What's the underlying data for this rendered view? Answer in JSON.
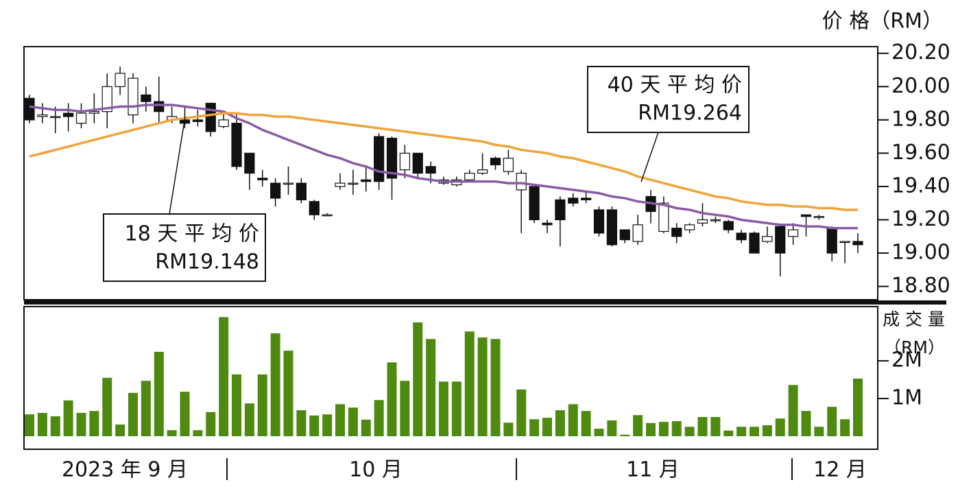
{
  "chart_data": [
    {
      "type": "candlestick",
      "y_title": "价 格（RM）",
      "open": [
        19.93,
        19.82,
        19.82,
        19.84,
        19.78,
        19.84,
        19.85,
        20.0,
        19.83,
        19.95,
        19.91,
        19.8,
        19.8,
        19.8,
        19.9,
        19.76,
        19.78,
        19.6,
        19.45,
        19.42,
        19.42,
        19.42,
        19.31,
        19.23,
        19.4,
        19.42,
        19.44,
        19.7,
        19.69,
        19.5,
        19.6,
        19.52,
        19.42,
        19.41,
        19.44,
        19.48,
        19.57,
        19.49,
        19.38,
        19.4,
        19.18,
        19.32,
        19.33,
        19.33,
        19.26,
        19.26,
        19.14,
        19.07,
        19.34,
        19.13,
        19.15,
        19.14,
        19.18,
        19.2,
        19.19,
        19.12,
        19.12,
        19.07,
        19.16,
        19.1,
        19.23,
        19.22,
        19.15,
        19.07,
        19.07
      ],
      "high": [
        19.95,
        19.9,
        19.88,
        19.9,
        19.9,
        19.96,
        20.08,
        20.12,
        20.08,
        20.0,
        20.06,
        19.88,
        19.88,
        19.86,
        19.9,
        19.85,
        19.84,
        19.6,
        19.5,
        19.45,
        19.52,
        19.45,
        19.32,
        19.24,
        19.48,
        19.5,
        19.52,
        19.72,
        19.7,
        19.65,
        19.6,
        19.55,
        19.46,
        19.46,
        19.5,
        19.6,
        19.58,
        19.62,
        19.5,
        19.4,
        19.2,
        19.34,
        19.36,
        19.37,
        19.28,
        19.28,
        19.14,
        19.23,
        19.38,
        19.34,
        19.18,
        19.18,
        19.3,
        19.22,
        19.2,
        19.14,
        19.13,
        19.16,
        19.17,
        19.18,
        19.23,
        19.23,
        19.16,
        19.07,
        19.12
      ],
      "low": [
        19.78,
        19.78,
        19.72,
        19.73,
        19.75,
        19.78,
        19.75,
        19.95,
        19.78,
        19.85,
        19.78,
        19.78,
        19.75,
        19.76,
        19.7,
        19.75,
        19.5,
        19.38,
        19.4,
        19.28,
        19.35,
        19.3,
        19.2,
        19.23,
        19.38,
        19.35,
        19.37,
        19.38,
        19.32,
        19.45,
        19.45,
        19.42,
        19.41,
        19.4,
        19.43,
        19.47,
        19.5,
        19.47,
        19.12,
        19.18,
        19.12,
        19.04,
        19.28,
        19.3,
        19.1,
        19.04,
        19.06,
        19.05,
        19.18,
        19.12,
        19.06,
        19.12,
        19.16,
        19.18,
        19.12,
        19.06,
        19.0,
        19.06,
        18.86,
        19.05,
        19.1,
        19.2,
        18.95,
        18.94,
        19.0
      ],
      "close": [
        19.8,
        19.83,
        19.82,
        19.82,
        19.84,
        19.85,
        20.0,
        20.08,
        20.05,
        19.91,
        19.85,
        19.82,
        19.78,
        19.79,
        19.73,
        19.8,
        19.52,
        19.48,
        19.44,
        19.33,
        19.42,
        19.32,
        19.23,
        19.23,
        19.42,
        19.42,
        19.43,
        19.43,
        19.45,
        19.6,
        19.48,
        19.48,
        19.44,
        19.44,
        19.48,
        19.5,
        19.53,
        19.57,
        19.48,
        19.2,
        19.17,
        19.2,
        19.3,
        19.32,
        19.12,
        19.05,
        19.08,
        19.17,
        19.25,
        19.3,
        19.1,
        19.17,
        19.2,
        19.2,
        19.14,
        19.08,
        19.0,
        19.1,
        19.0,
        19.14,
        19.22,
        19.22,
        19.0,
        19.07,
        19.05
      ],
      "series": [
        {
          "name": "18 天 平 均 价",
          "annotation": "RM19.148",
          "color": "#8b5aa6",
          "values": [
            19.88,
            19.87,
            19.86,
            19.86,
            19.85,
            19.86,
            19.87,
            19.88,
            19.88,
            19.89,
            19.89,
            19.89,
            19.88,
            19.87,
            19.86,
            19.85,
            19.81,
            19.78,
            19.74,
            19.71,
            19.68,
            19.65,
            19.62,
            19.59,
            19.57,
            19.54,
            19.52,
            19.49,
            19.48,
            19.47,
            19.45,
            19.44,
            19.43,
            19.43,
            19.43,
            19.43,
            19.43,
            19.42,
            19.42,
            19.41,
            19.4,
            19.39,
            19.38,
            19.37,
            19.36,
            19.34,
            19.33,
            19.31,
            19.3,
            19.29,
            19.27,
            19.26,
            19.24,
            19.23,
            19.22,
            19.2,
            19.19,
            19.18,
            19.17,
            19.17,
            19.16,
            19.16,
            19.15,
            19.15,
            19.15
          ]
        },
        {
          "name": "40 天 平 均 价",
          "annotation": "RM19.264",
          "color": "#f0a43c",
          "values": [
            19.58,
            19.6,
            19.62,
            19.64,
            19.66,
            19.68,
            19.7,
            19.72,
            19.74,
            19.76,
            19.78,
            19.8,
            19.81,
            19.82,
            19.83,
            19.84,
            19.84,
            19.83,
            19.83,
            19.82,
            19.82,
            19.81,
            19.8,
            19.79,
            19.78,
            19.77,
            19.76,
            19.75,
            19.74,
            19.73,
            19.72,
            19.71,
            19.7,
            19.69,
            19.68,
            19.67,
            19.65,
            19.64,
            19.62,
            19.61,
            19.6,
            19.58,
            19.57,
            19.55,
            19.53,
            19.51,
            19.49,
            19.46,
            19.44,
            19.42,
            19.4,
            19.38,
            19.36,
            19.34,
            19.33,
            19.31,
            19.3,
            19.29,
            19.29,
            19.28,
            19.28,
            19.27,
            19.27,
            19.26,
            19.26
          ]
        }
      ],
      "ylim": [
        18.72,
        20.24
      ],
      "yticks": [
        {
          "value": 18.8,
          "label": "18.80"
        },
        {
          "value": 19.0,
          "label": "19.00"
        },
        {
          "value": 19.2,
          "label": "19.20"
        },
        {
          "value": 19.4,
          "label": "19.40"
        },
        {
          "value": 19.6,
          "label": "19.60"
        },
        {
          "value": 19.8,
          "label": "19.80"
        },
        {
          "value": 20.0,
          "label": "20.00"
        },
        {
          "value": 20.2,
          "label": "20.20"
        }
      ]
    },
    {
      "type": "bar",
      "y_title": [
        "成 交 量",
        "（RM）"
      ],
      "color": "#4f8a10",
      "values": [
        0.58,
        0.62,
        0.53,
        0.95,
        0.62,
        0.67,
        1.55,
        0.31,
        1.15,
        1.47,
        2.24,
        0.16,
        1.18,
        0.16,
        0.64,
        3.16,
        1.64,
        0.87,
        1.64,
        2.73,
        2.27,
        0.69,
        0.55,
        0.58,
        0.85,
        0.76,
        0.44,
        0.96,
        1.96,
        1.47,
        3.02,
        2.58,
        1.45,
        1.45,
        2.78,
        2.62,
        2.58,
        0.36,
        1.24,
        0.45,
        0.49,
        0.69,
        0.85,
        0.67,
        0.2,
        0.42,
        0.04,
        0.56,
        0.35,
        0.38,
        0.4,
        0.25,
        0.51,
        0.51,
        0.15,
        0.25,
        0.25,
        0.29,
        0.47,
        1.36,
        0.67,
        0.25,
        0.78,
        0.45,
        1.53
      ],
      "ylim": [
        0,
        3.44
      ],
      "yticks": [
        {
          "value": 1,
          "label": "1M"
        },
        {
          "value": 2,
          "label": "2M"
        }
      ],
      "x_month_labels": [
        "2023 年 9 月",
        "10 月",
        "11 月",
        "12 月"
      ]
    }
  ]
}
